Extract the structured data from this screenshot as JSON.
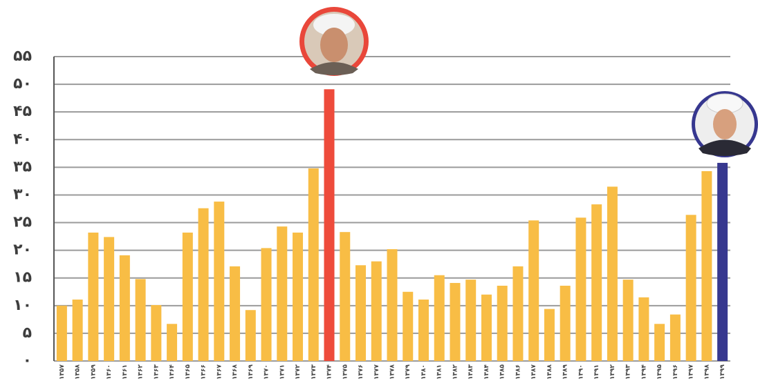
{
  "chart_data": {
    "type": "bar",
    "categories": [
      "۱۳۵۷",
      "۱۳۵۸",
      "۱۳۵۹",
      "۱۳۶۰",
      "۱۳۶۱",
      "۱۳۶۲",
      "۱۳۶۳",
      "۱۳۶۴",
      "۱۳۶۵",
      "۱۳۶۶",
      "۱۳۶۷",
      "۱۳۶۸",
      "۱۳۶۹",
      "۱۳۷۰",
      "۱۳۷۱",
      "۱۳۷۲",
      "۱۳۷۳",
      "۱۳۷۴",
      "۱۳۷۵",
      "۱۳۷۶",
      "۱۳۷۷",
      "۱۳۷۸",
      "۱۳۷۹",
      "۱۳۸۰",
      "۱۳۸۱",
      "۱۳۸۲",
      "۱۳۸۳",
      "۱۳۸۴",
      "۱۳۸۵",
      "۱۳۸۶",
      "۱۳۸۷",
      "۱۳۸۸",
      "۱۳۸۹",
      "۱۳۹۰",
      "۱۳۹۱",
      "۱۳۹۲",
      "۱۳۹۳",
      "۱۳۹۴",
      "۱۳۹۵",
      "۱۳۹۶",
      "۱۳۹۷",
      "۱۳۹۸",
      "۱۳۹۹"
    ],
    "values": [
      10,
      11.1,
      23.2,
      22.4,
      19.1,
      14.8,
      10.1,
      6.7,
      23.2,
      27.6,
      28.8,
      17.1,
      9.2,
      20.4,
      24.3,
      23.2,
      34.8,
      49.1,
      23.3,
      17.3,
      18,
      20.2,
      12.5,
      11.1,
      15.5,
      14.1,
      14.7,
      12,
      13.6,
      17.1,
      25.4,
      9.4,
      13.6,
      25.9,
      28.3,
      31.5,
      14.7,
      11.5,
      6.7,
      8.4,
      26.4,
      34.3,
      35.8
    ],
    "colors": [
      "#f8bd45",
      "#f8bd45",
      "#f8bd45",
      "#f8bd45",
      "#f8bd45",
      "#f8bd45",
      "#f8bd45",
      "#f8bd45",
      "#f8bd45",
      "#f8bd45",
      "#f8bd45",
      "#f8bd45",
      "#f8bd45",
      "#f8bd45",
      "#f8bd45",
      "#f8bd45",
      "#f8bd45",
      "#ee4b3b",
      "#f8bd45",
      "#f8bd45",
      "#f8bd45",
      "#f8bd45",
      "#f8bd45",
      "#f8bd45",
      "#f8bd45",
      "#f8bd45",
      "#f8bd45",
      "#f8bd45",
      "#f8bd45",
      "#f8bd45",
      "#f8bd45",
      "#f8bd45",
      "#f8bd45",
      "#f8bd45",
      "#f8bd45",
      "#f8bd45",
      "#f8bd45",
      "#f8bd45",
      "#f8bd45",
      "#f8bd45",
      "#f8bd45",
      "#f8bd45",
      "#37388f"
    ],
    "ylim": [
      0,
      55
    ],
    "yticks": [
      {
        "value": 0,
        "label": "۰"
      },
      {
        "value": 5,
        "label": "۵"
      },
      {
        "value": 10,
        "label": "۱۰"
      },
      {
        "value": 15,
        "label": "۱۵"
      },
      {
        "value": 20,
        "label": "۲۰"
      },
      {
        "value": 25,
        "label": "۲۵"
      },
      {
        "value": 30,
        "label": "۳۰"
      },
      {
        "value": 35,
        "label": "۳۵"
      },
      {
        "value": 40,
        "label": "۴۰"
      },
      {
        "value": 45,
        "label": "۴۵"
      },
      {
        "value": 50,
        "label": "۵۰"
      },
      {
        "value": 55,
        "label": "۵۵"
      }
    ],
    "grid": true
  }
}
